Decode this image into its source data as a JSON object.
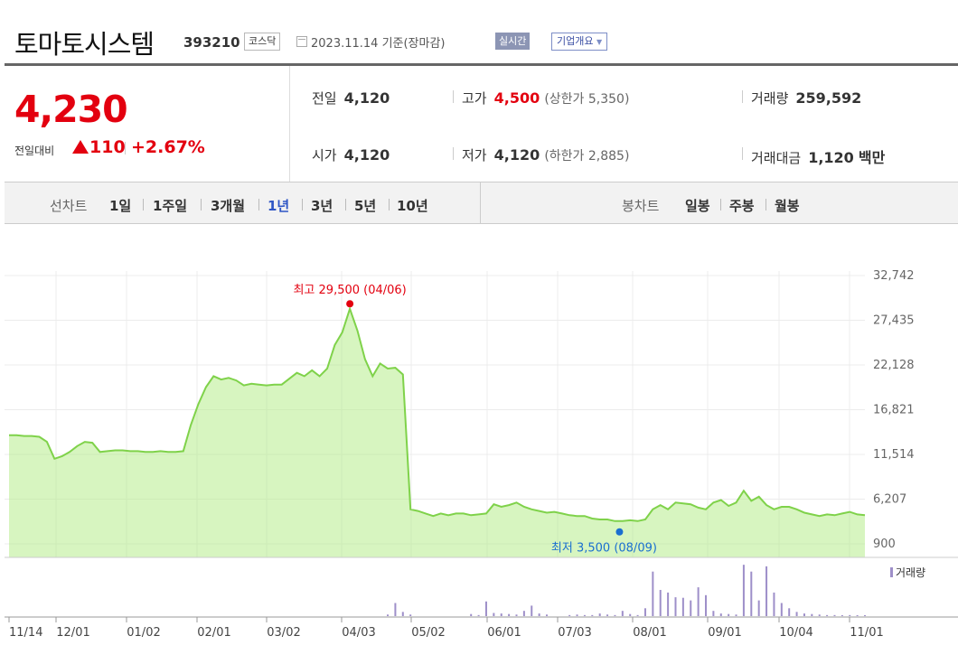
{
  "header": {
    "name": "토마토시스템",
    "code": "393210",
    "market": "코스닥",
    "basedate": "2023.11.14 기준(장마감)",
    "realtime": "실시간",
    "overview": "기업개요"
  },
  "quote": {
    "price": "4,230",
    "change_label": "전일대비",
    "change_value": "110",
    "change_pct": "+2.67%",
    "prev_close": {
      "label": "전일",
      "value": "4,120"
    },
    "high": {
      "label": "고가",
      "value": "4,500",
      "limit_label": "상한가",
      "limit_value": "5,350"
    },
    "volume": {
      "label": "거래량",
      "value": "259,592"
    },
    "open": {
      "label": "시가",
      "value": "4,120"
    },
    "low": {
      "label": "저가",
      "value": "4,120",
      "limit_label": "하한가",
      "limit_value": "2,885"
    },
    "turnover": {
      "label": "거래대금",
      "value": "1,120",
      "unit": "백만"
    }
  },
  "tabs": {
    "line_label": "선차트",
    "line_periods": [
      "1일",
      "1주일",
      "3개월",
      "1년",
      "3년",
      "5년",
      "10년"
    ],
    "active_period": "1년",
    "candle_label": "봉차트",
    "candle_periods": [
      "일봉",
      "주봉",
      "월봉"
    ]
  },
  "colors": {
    "up": "#e3000f",
    "area_fill": "#b6ec8c",
    "line": "#7fd24a",
    "low_marker": "#1a6fd0",
    "volume_bar": "#9e8fc9",
    "active_tab": "#2f56c5"
  },
  "chart_data": {
    "type": "area",
    "x_ticks": [
      "11/14",
      "12/01",
      "01/02",
      "02/01",
      "03/02",
      "04/03",
      "05/02",
      "06/01",
      "07/03",
      "08/01",
      "09/01",
      "10/04",
      "11/01"
    ],
    "y_ticks": [
      "32,742",
      "27,435",
      "22,128",
      "16,821",
      "11,514",
      "6,207",
      "900"
    ],
    "ylim": [
      900,
      32742
    ],
    "high_label": "최고 29,500 (04/06)",
    "low_label": "최저 3,500 (08/09)",
    "high": {
      "date": "04/06",
      "value": 29500
    },
    "low": {
      "date": "08/09",
      "value": 3500
    },
    "volume_legend": "거래량",
    "series": [
      {
        "values": [
          13800,
          13800,
          13700,
          13700,
          13600,
          13000,
          11000,
          11300,
          11800,
          12500,
          13000,
          12900,
          11800,
          11900,
          12000,
          12000,
          11900,
          11900,
          11800,
          11800,
          11900,
          11800,
          11800,
          11900,
          15000,
          17500,
          19500,
          20800,
          20400,
          20600,
          20300,
          19700,
          19900,
          19800,
          19700,
          19800,
          19800,
          20500,
          21200,
          20800,
          21500,
          20800,
          21700,
          24500,
          26000,
          28800,
          26200,
          22800,
          20800,
          22300,
          21700,
          21800,
          21000,
          5000,
          4800,
          4500,
          4200,
          4500,
          4300,
          4500,
          4500,
          4300,
          4400,
          4500,
          5600,
          5300,
          5500,
          5800,
          5300,
          5000,
          4800,
          4600,
          4700,
          4500,
          4300,
          4200,
          4200,
          3900,
          3800,
          3800,
          3600,
          3600,
          3700,
          3600,
          3800,
          5000,
          5500,
          5000,
          5800,
          5700,
          5600,
          5200,
          5000,
          5800,
          6100,
          5400,
          5800,
          7200,
          6000,
          6500,
          5500,
          5000,
          5300,
          5300,
          5000,
          4600,
          4400,
          4200,
          4400,
          4300,
          4500,
          4700,
          4400,
          4300
        ]
      }
    ],
    "volume_relative": [
      0,
      0,
      0,
      0,
      0,
      0,
      0,
      0,
      0,
      0,
      0,
      0,
      0,
      0,
      0,
      0,
      0,
      0,
      0,
      0,
      0,
      0,
      0,
      0,
      0,
      0,
      0,
      0,
      0,
      0,
      0,
      0,
      0,
      0,
      0,
      0,
      0,
      0,
      0,
      0,
      0,
      0,
      0,
      0,
      0,
      0,
      0,
      0,
      0,
      0,
      0.03,
      0.25,
      0.08,
      0.03,
      0,
      0,
      0,
      0,
      0,
      0,
      0,
      0.04,
      0.02,
      0.28,
      0.06,
      0.05,
      0.04,
      0.03,
      0.1,
      0.2,
      0.05,
      0.03,
      0,
      0,
      0.02,
      0.03,
      0.02,
      0.02,
      0.05,
      0.03,
      0.02,
      0.1,
      0.04,
      0.02,
      0.15,
      0.85,
      0.5,
      0.45,
      0.36,
      0.35,
      0.3,
      0.55,
      0.4,
      0.1,
      0.05,
      0.04,
      0.03,
      0.98,
      0.85,
      0.3,
      0.95,
      0.45,
      0.25,
      0.15,
      0.08,
      0.05,
      0.04,
      0.03,
      0.02,
      0.02,
      0.01,
      0.02,
      0.01,
      0.01
    ]
  }
}
